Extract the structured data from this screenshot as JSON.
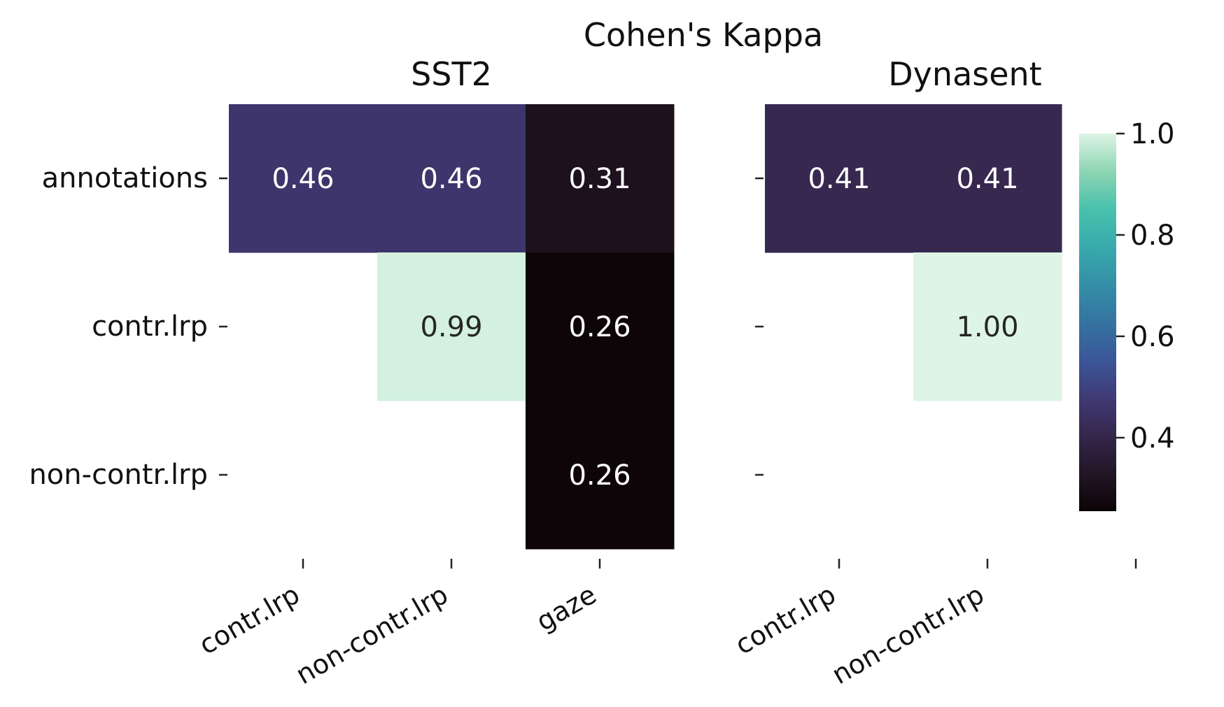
{
  "chart_data": {
    "type": "heatmap",
    "suptitle": "Cohen's Kappa",
    "rows": [
      "annotations",
      "contr.lrp",
      "non-contr.lrp"
    ],
    "panels": [
      {
        "title": "SST2",
        "columns": [
          "contr.lrp",
          "non-contr.lrp",
          "gaze"
        ],
        "values": [
          [
            0.46,
            0.46,
            0.31
          ],
          [
            null,
            0.99,
            0.26
          ],
          [
            null,
            null,
            0.26
          ]
        ],
        "labels": [
          [
            "0.46",
            "0.46",
            "0.31"
          ],
          [
            null,
            "0.99",
            "0.26"
          ],
          [
            null,
            null,
            "0.26"
          ]
        ]
      },
      {
        "title": "Dynasent",
        "columns": [
          "contr.lrp",
          "non-contr.lrp"
        ],
        "extra_x_tick": true,
        "values": [
          [
            0.41,
            0.41
          ],
          [
            null,
            1.0
          ],
          [
            null,
            null
          ]
        ],
        "labels": [
          [
            "0.41",
            "0.41"
          ],
          [
            null,
            "1.00"
          ],
          [
            null,
            null
          ]
        ]
      }
    ],
    "colorbar": {
      "vmin": 0.255,
      "vmax": 1.0,
      "ticks": [
        "0.4",
        "0.6",
        "0.8",
        "1.0"
      ],
      "tick_values": [
        0.4,
        0.6,
        0.8,
        1.0
      ],
      "colormap": "mako"
    }
  }
}
